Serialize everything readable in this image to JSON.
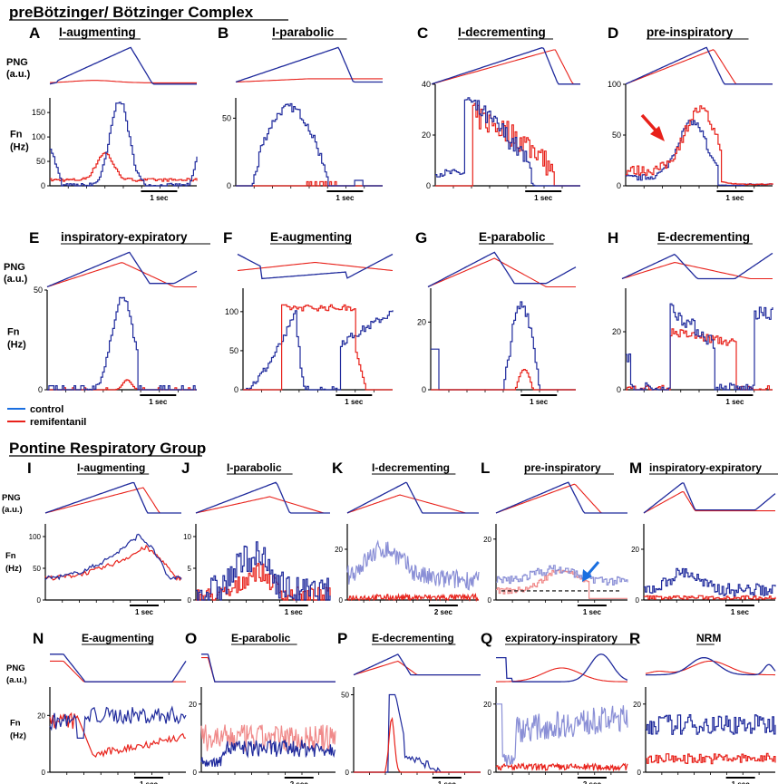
{
  "figure": {
    "section1_title": "preBötzinger/ Bötzinger Complex",
    "section2_title": "Pontine Respiratory Group",
    "png_label_line1": "PNG",
    "png_label_line2": "(a.u.)",
    "fn_label_line1": "Fn",
    "fn_label_line2": "(Hz)",
    "legend": [
      {
        "name": "control",
        "color": "#1f2a9c"
      },
      {
        "name": "remifentanil",
        "color": "#e8211a"
      }
    ]
  },
  "colors": {
    "control": "#1f2a9c",
    "control_light": "#8a8fd6",
    "remifentanil": "#e8211a",
    "remifentanil_light": "#f08a8a",
    "arrow_red": "#e8211a",
    "arrow_blue": "#1a6fe0"
  },
  "chart_data": [
    {
      "letter": "A",
      "title": "I-augmenting",
      "type": "line",
      "ylabel": "Fn (Hz)",
      "ylim": [
        0,
        180
      ],
      "yticks": [
        "0",
        "50",
        "100",
        "150"
      ],
      "scalebar": "1 sec"
    },
    {
      "letter": "B",
      "title": "I-parabolic",
      "type": "line",
      "ylabel": "Fn (Hz)",
      "ylim": [
        0,
        65
      ],
      "yticks": [
        "0",
        "50"
      ],
      "scalebar": "1 sec"
    },
    {
      "letter": "C",
      "title": "I-decrementing",
      "type": "line",
      "ylabel": "Fn (Hz)",
      "ylim": [
        0,
        40
      ],
      "yticks": [
        "0",
        "20",
        "40"
      ],
      "scalebar": "1 sec"
    },
    {
      "letter": "D",
      "title": "pre-inspiratory",
      "type": "line",
      "ylabel": "Fn (Hz)",
      "ylim": [
        0,
        100
      ],
      "yticks": [
        "0",
        "50",
        "100"
      ],
      "scalebar": "1 sec"
    },
    {
      "letter": "E",
      "title": "inspiratory-expiratory",
      "type": "line",
      "ylabel": "Fn (Hz)",
      "ylim": [
        0,
        50
      ],
      "yticks": [
        "0",
        "50"
      ],
      "scalebar": "1 sec"
    },
    {
      "letter": "F",
      "title": "E-augmenting",
      "type": "line",
      "ylabel": "Fn (Hz)",
      "ylim": [
        0,
        130
      ],
      "yticks": [
        "0",
        "50",
        "100"
      ],
      "scalebar": "1 sec"
    },
    {
      "letter": "G",
      "title": "E-parabolic",
      "type": "line",
      "ylabel": "Fn (Hz)",
      "ylim": [
        0,
        30
      ],
      "yticks": [
        "0",
        "20"
      ],
      "scalebar": "1 sec"
    },
    {
      "letter": "H",
      "title": "E-decrementing",
      "type": "line",
      "ylabel": "Fn (Hz)",
      "ylim": [
        0,
        35
      ],
      "yticks": [
        "0",
        "20"
      ],
      "scalebar": "1 sec"
    },
    {
      "letter": "I",
      "title": "I-augmenting",
      "type": "line",
      "ylabel": "Fn (Hz)",
      "ylim": [
        0,
        120
      ],
      "yticks": [
        "0",
        "50",
        "100"
      ],
      "scalebar": "1 sec"
    },
    {
      "letter": "J",
      "title": "I-parabolic",
      "type": "line",
      "ylabel": "Fn (Hz)",
      "ylim": [
        0,
        12
      ],
      "yticks": [
        "0",
        "5",
        "10"
      ],
      "scalebar": "1 sec"
    },
    {
      "letter": "K",
      "title": "I-decrementing",
      "type": "line",
      "ylabel": "Fn (Hz)",
      "ylim": [
        0,
        30
      ],
      "yticks": [
        "0",
        "20"
      ],
      "scalebar": "2 sec"
    },
    {
      "letter": "L",
      "title": "pre-inspiratory",
      "type": "line",
      "ylabel": "Fn (Hz)",
      "ylim": [
        0,
        25
      ],
      "yticks": [
        "0",
        "20"
      ],
      "scalebar": "1 sec"
    },
    {
      "letter": "M",
      "title": "inspiratory-expiratory",
      "type": "line",
      "ylabel": "Fn (Hz)",
      "ylim": [
        0,
        30
      ],
      "yticks": [
        "0",
        "20"
      ],
      "scalebar": "1 sec"
    },
    {
      "letter": "N",
      "title": "E-augmenting",
      "type": "line",
      "ylabel": "Fn (Hz)",
      "ylim": [
        0,
        30
      ],
      "yticks": [
        "0",
        "20"
      ],
      "scalebar": "1 sec"
    },
    {
      "letter": "O",
      "title": "E-parabolic",
      "type": "line",
      "ylabel": "Fn (Hz)",
      "ylim": [
        0,
        25
      ],
      "yticks": [
        "0",
        "20"
      ],
      "scalebar": "2 sec"
    },
    {
      "letter": "P",
      "title": "E-decrementing",
      "type": "line",
      "ylabel": "Fn (Hz)",
      "ylim": [
        0,
        55
      ],
      "yticks": [
        "0",
        "50"
      ],
      "scalebar": "1 sec"
    },
    {
      "letter": "Q",
      "title": "expiratory-inspiratory",
      "type": "line",
      "ylabel": "Fn (Hz)",
      "ylim": [
        0,
        25
      ],
      "yticks": [
        "0",
        "20"
      ],
      "scalebar": "2 sec"
    },
    {
      "letter": "R",
      "title": "NRM",
      "type": "line",
      "ylabel": "Fn (Hz)",
      "ylim": [
        0,
        25
      ],
      "yticks": [
        "0",
        "20"
      ],
      "scalebar": "1 sec"
    }
  ]
}
